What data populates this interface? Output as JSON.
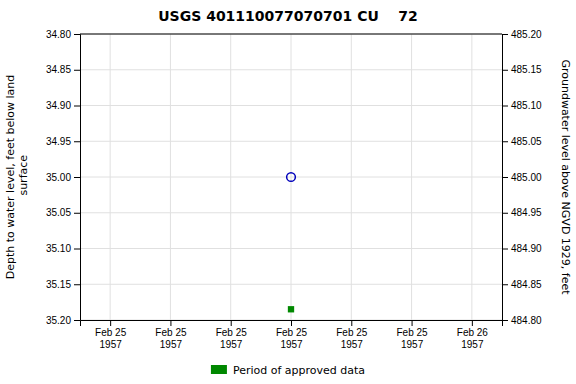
{
  "chart_data": {
    "type": "scatter",
    "title": "USGS 401110077070701 CU    72",
    "ylabel": "Depth to water level, feet below land\n surface",
    "y2label": "Groundwater level above NGVD 1929, feet",
    "categories": [
      "Feb 25\n1957",
      "Feb 25\n1957",
      "Feb 25\n1957",
      "Feb 25\n1957",
      "Feb 25\n1957",
      "Feb 25\n1957",
      "Feb 26\n1957"
    ],
    "ylim": [
      35.2,
      34.8
    ],
    "yticks": [
      {
        "value": 34.8,
        "label": "34.80"
      },
      {
        "value": 34.85,
        "label": "34.85"
      },
      {
        "value": 34.9,
        "label": "34.90"
      },
      {
        "value": 34.95,
        "label": "34.95"
      },
      {
        "value": 35,
        "label": "35.00"
      },
      {
        "value": 35.05,
        "label": "35.05"
      },
      {
        "value": 35.1,
        "label": "35.10"
      },
      {
        "value": 35.15,
        "label": "35.15"
      },
      {
        "value": 35.2,
        "label": "35.20"
      }
    ],
    "y2lim": [
      484.8,
      485.2
    ],
    "y2ticks": [
      {
        "value": 484.8,
        "label": "484.80"
      },
      {
        "value": 484.85,
        "label": "484.85"
      },
      {
        "value": 484.9,
        "label": "484.90"
      },
      {
        "value": 484.95,
        "label": "484.95"
      },
      {
        "value": 485,
        "label": "485.00"
      },
      {
        "value": 485.05,
        "label": "485.05"
      },
      {
        "value": 485.1,
        "label": "485.10"
      },
      {
        "value": 485.15,
        "label": "485.15"
      },
      {
        "value": 485.2,
        "label": "485.20"
      }
    ],
    "grid": true,
    "legend": "bottom",
    "series": [
      {
        "color": "#0000bb",
        "marker": "circle-open",
        "values": [
          null,
          null,
          null,
          35,
          null,
          null,
          null
        ]
      },
      {
        "name": "Period of approved data",
        "color": "#008800",
        "marker": "square",
        "values": [
          null,
          null,
          null,
          35.185,
          null,
          null,
          null
        ]
      }
    ]
  }
}
